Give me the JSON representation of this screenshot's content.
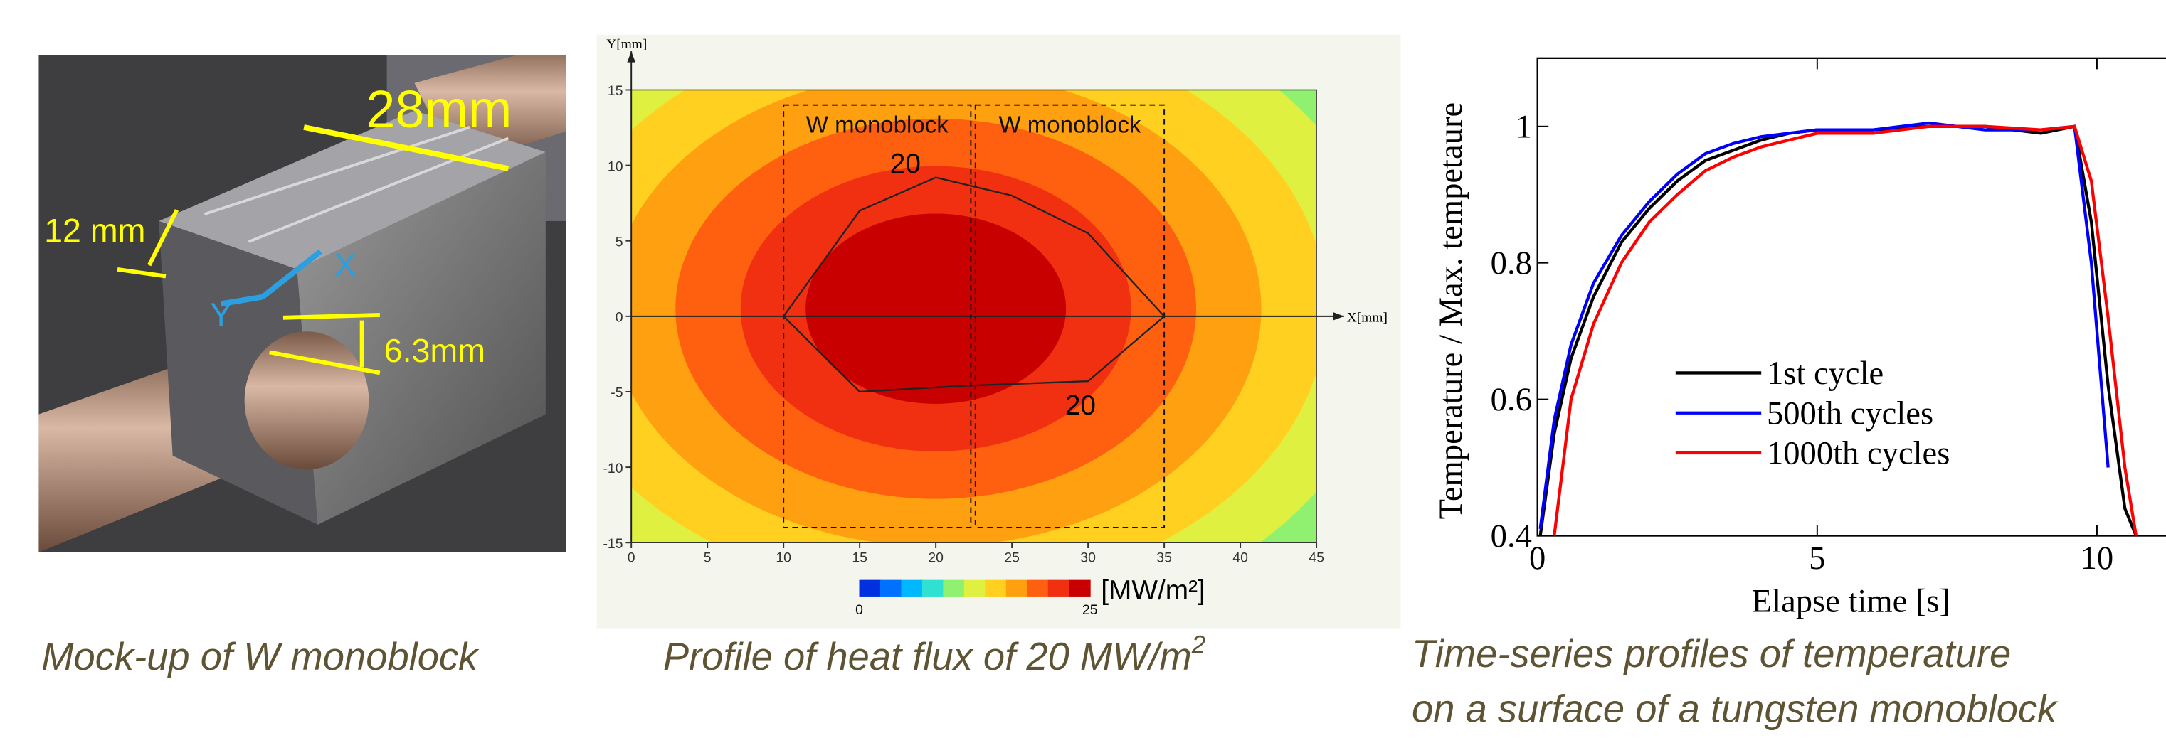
{
  "photo": {
    "labels": [
      "28mm",
      "12 mm",
      "6.3mm",
      "X",
      "Y"
    ],
    "caption": "Mock-up of W monoblock"
  },
  "chart_data": [
    {
      "type": "contour",
      "xlabel": "X[mm]",
      "ylabel": "Y[mm]",
      "xlim": [
        0,
        45
      ],
      "ylim": [
        -15,
        15
      ],
      "xticks": [
        0,
        5,
        10,
        15,
        20,
        25,
        30,
        35,
        40,
        45
      ],
      "yticks": [
        -15,
        -10,
        -5,
        0,
        5,
        10,
        15
      ],
      "regions": [
        {
          "label": "W monoblock",
          "x": [
            10,
            22.3
          ],
          "y": [
            -14,
            14
          ]
        },
        {
          "label": "W monoblock",
          "x": [
            22.6,
            35
          ],
          "y": [
            -14,
            14
          ]
        }
      ],
      "contour_level": 20,
      "contour_x": [
        10,
        15,
        20,
        25,
        30,
        35,
        30,
        22,
        15,
        10
      ],
      "contour_y": [
        0,
        7,
        9.2,
        8,
        5.5,
        0,
        -4.3,
        -4.6,
        -5,
        0
      ],
      "colormap": [
        "#0030e0",
        "#0070ff",
        "#00b8ff",
        "#30e0d0",
        "#90f070",
        "#e0f040",
        "#ffd020",
        "#ffa010",
        "#ff6010",
        "#f03010",
        "#c80000"
      ],
      "colorbar_ticks": [
        0,
        25
      ],
      "colorbar_label": "[MW/m²]",
      "caption": "Profile of heat flux of 20 MW/m",
      "caption_sup": "2"
    },
    {
      "type": "line",
      "xlabel": "Elapse time [s]",
      "ylabel": "Temperature / Max. tempetaure",
      "xlim": [
        0,
        11.5
      ],
      "ylim": [
        0.4,
        1.1
      ],
      "xticks": [
        0,
        5,
        10
      ],
      "yticks": [
        0.4,
        0.6,
        0.8,
        1
      ],
      "x": [
        0.05,
        0.3,
        0.6,
        1,
        1.5,
        2,
        2.5,
        3,
        3.5,
        4,
        4.5,
        5,
        6,
        7,
        8,
        9,
        9.6,
        9.9,
        10.2,
        10.5,
        10.7
      ],
      "series": [
        {
          "name": "1st cycle",
          "color": "#000000",
          "values": [
            0.4,
            0.55,
            0.66,
            0.75,
            0.83,
            0.88,
            0.92,
            0.95,
            0.965,
            0.98,
            0.99,
            0.995,
            0.995,
            1.0,
            1.0,
            0.99,
            1.0,
            0.86,
            0.62,
            0.44,
            0.4
          ]
        },
        {
          "name": "500th cycles",
          "color": "#0000ff",
          "values": [
            0.41,
            0.57,
            0.68,
            0.77,
            0.84,
            0.89,
            0.93,
            0.96,
            0.975,
            0.985,
            0.99,
            0.995,
            0.995,
            1.005,
            0.995,
            0.995,
            1.0,
            0.8,
            0.5,
            null,
            null
          ]
        },
        {
          "name": "1000th cycles",
          "color": "#ff0000",
          "values": [
            null,
            0.4,
            0.6,
            0.71,
            0.8,
            0.86,
            0.9,
            0.935,
            0.955,
            0.97,
            0.98,
            0.99,
            0.99,
            1.0,
            1.0,
            0.995,
            1.0,
            0.92,
            0.72,
            0.5,
            0.4
          ]
        }
      ],
      "caption": [
        "Time-series profiles of temperature",
        "on a surface of a tungsten monoblock"
      ]
    }
  ]
}
